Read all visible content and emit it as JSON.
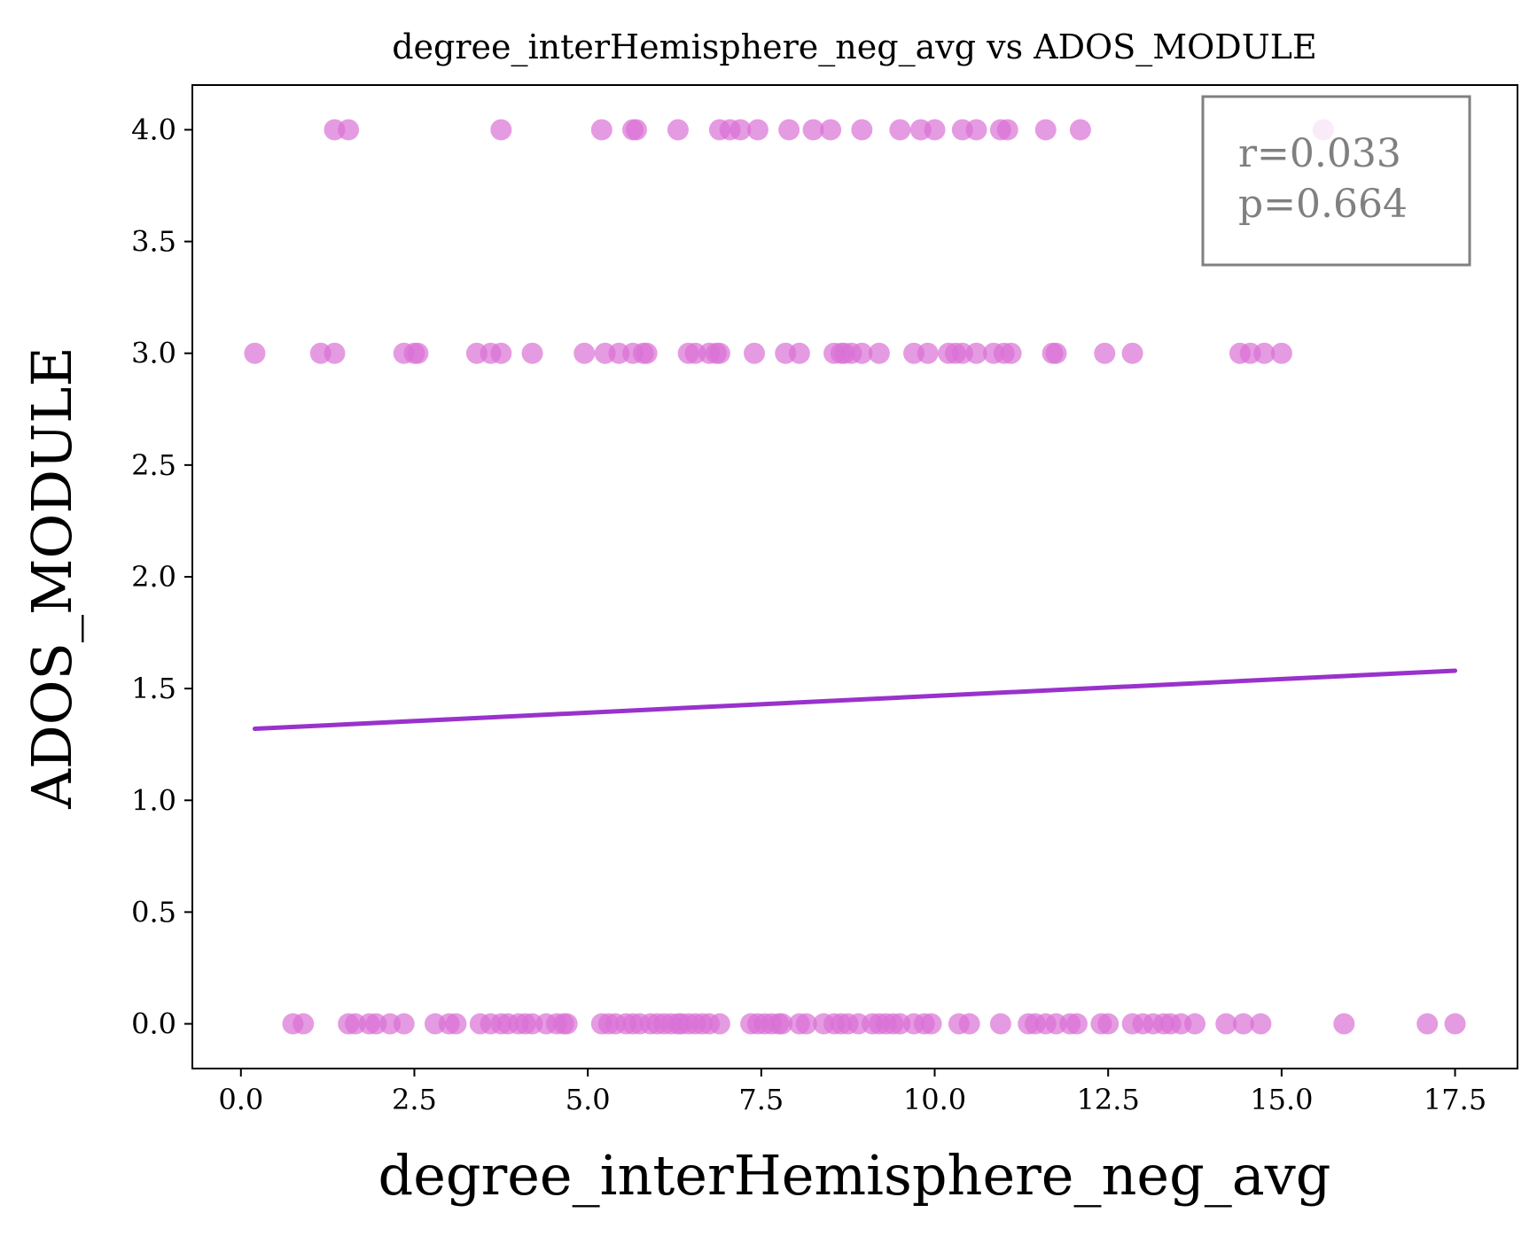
{
  "chart_data": {
    "type": "scatter",
    "title": "degree_interHemisphere_neg_avg vs ADOS_MODULE",
    "xlabel": "degree_interHemisphere_neg_avg",
    "ylabel": "ADOS_MODULE",
    "xlim": [
      -0.7,
      18.4
    ],
    "ylim": [
      -0.2,
      4.2
    ],
    "xticks": [
      "0.0",
      "2.5",
      "5.0",
      "7.5",
      "10.0",
      "12.5",
      "15.0",
      "17.5"
    ],
    "yticks": [
      "0.0",
      "0.5",
      "1.0",
      "1.5",
      "2.0",
      "2.5",
      "3.0",
      "3.5",
      "4.0"
    ],
    "grid": false,
    "stats_box": {
      "r": "r=0.033",
      "p": "p=0.664",
      "placement": "top-right"
    },
    "point_color": "#da70d6",
    "line_color": "#9932cc",
    "fit_line": {
      "x": [
        0.2,
        17.5
      ],
      "y": [
        1.32,
        1.58
      ]
    },
    "series": [
      {
        "y": 4,
        "x": [
          1.35,
          1.55,
          3.75,
          5.2,
          5.65,
          5.7,
          6.3,
          6.9,
          7.05,
          7.2,
          7.45,
          7.9,
          8.25,
          8.5,
          8.95,
          9.5,
          9.8,
          10.0,
          10.4,
          10.6,
          10.95,
          11.05,
          11.6,
          12.1,
          15.6
        ]
      },
      {
        "y": 3,
        "x": [
          0.2,
          1.15,
          1.35,
          2.35,
          2.5,
          2.55,
          3.4,
          3.6,
          3.75,
          4.2,
          4.95,
          5.25,
          5.45,
          5.65,
          5.8,
          5.85,
          6.45,
          6.55,
          6.75,
          6.85,
          6.9,
          7.4,
          7.85,
          8.05,
          8.55,
          8.65,
          8.7,
          8.8,
          8.95,
          9.2,
          9.7,
          9.9,
          10.2,
          10.3,
          10.4,
          10.6,
          10.85,
          11.0,
          11.1,
          11.7,
          11.75,
          12.45,
          12.85,
          14.4,
          14.55,
          14.75,
          15.0
        ]
      },
      {
        "y": 0,
        "x": [
          0.75,
          0.9,
          1.55,
          1.65,
          1.85,
          1.95,
          2.15,
          2.35,
          2.8,
          3.0,
          3.1,
          3.45,
          3.6,
          3.75,
          3.85,
          4.0,
          4.1,
          4.2,
          4.4,
          4.55,
          4.65,
          4.7,
          5.2,
          5.3,
          5.4,
          5.55,
          5.65,
          5.75,
          5.9,
          6.0,
          6.1,
          6.2,
          6.3,
          6.35,
          6.45,
          6.55,
          6.65,
          6.75,
          6.9,
          7.35,
          7.45,
          7.55,
          7.65,
          7.75,
          7.8,
          8.05,
          8.15,
          8.4,
          8.55,
          8.65,
          8.75,
          8.9,
          9.1,
          9.2,
          9.3,
          9.4,
          9.5,
          9.7,
          9.85,
          9.95,
          10.35,
          10.5,
          10.95,
          11.35,
          11.45,
          11.6,
          11.75,
          11.95,
          12.05,
          12.4,
          12.5,
          12.85,
          13.0,
          13.15,
          13.3,
          13.4,
          13.55,
          13.75,
          14.2,
          14.45,
          14.7,
          15.9,
          17.1,
          17.5
        ]
      }
    ]
  }
}
